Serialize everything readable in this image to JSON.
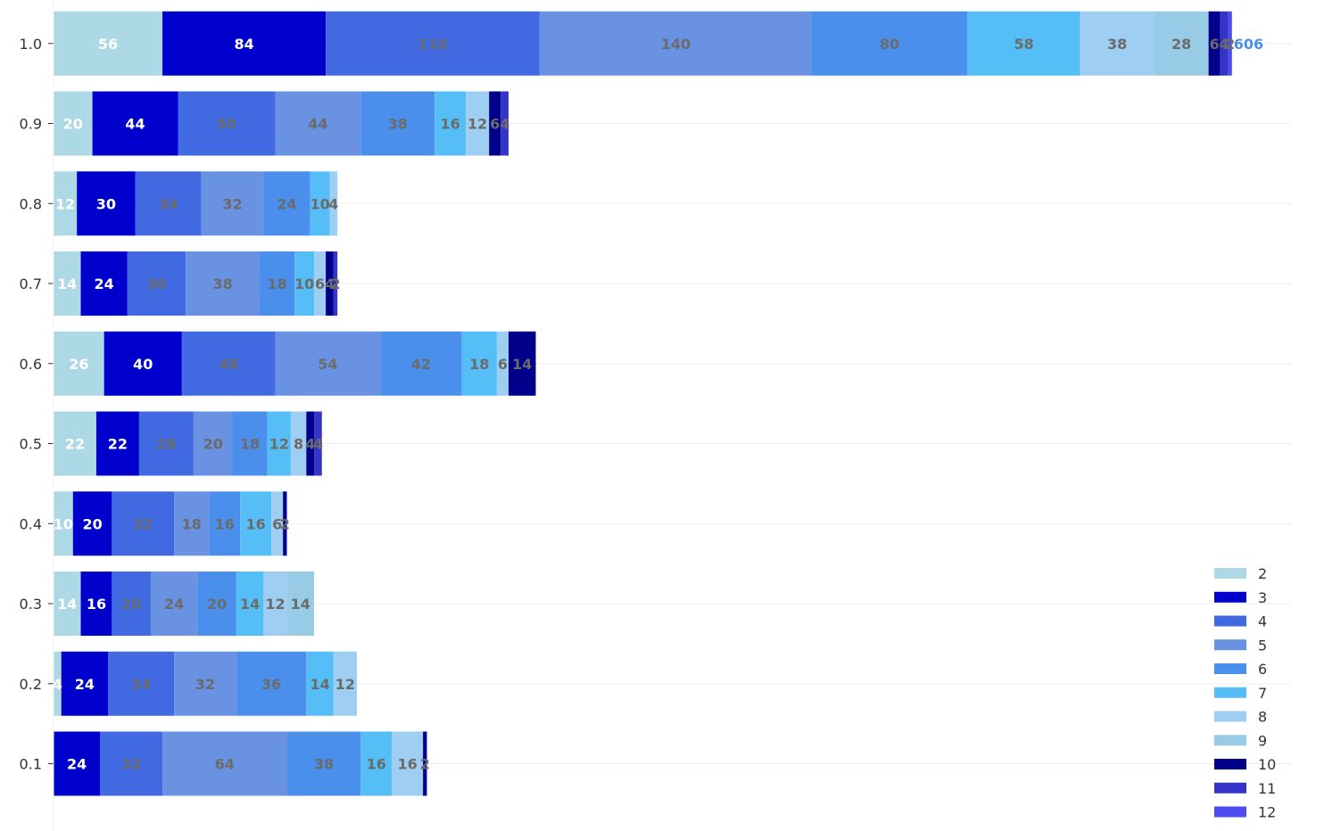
{
  "chart_data": {
    "type": "bar",
    "orientation": "horizontal",
    "stacked": true,
    "categories": [
      "0.1",
      "0.2",
      "0.3",
      "0.4",
      "0.5",
      "0.6",
      "0.7",
      "0.8",
      "0.9",
      "1.0"
    ],
    "series": [
      {
        "name": "2",
        "color": "#add8e6",
        "values": [
          0,
          4,
          14,
          10,
          22,
          26,
          14,
          12,
          20,
          56
        ]
      },
      {
        "name": "3",
        "color": "#0000cd",
        "values": [
          24,
          24,
          16,
          20,
          22,
          40,
          24,
          30,
          44,
          84
        ]
      },
      {
        "name": "4",
        "color": "#4169e1",
        "values": [
          32,
          34,
          20,
          32,
          28,
          48,
          30,
          34,
          50,
          110
        ]
      },
      {
        "name": "5",
        "color": "#6a92e3",
        "values": [
          64,
          32,
          24,
          18,
          20,
          54,
          38,
          32,
          44,
          140
        ]
      },
      {
        "name": "6",
        "color": "#4a8fec",
        "values": [
          38,
          36,
          20,
          16,
          18,
          42,
          18,
          24,
          38,
          80
        ]
      },
      {
        "name": "7",
        "color": "#56bef7",
        "values": [
          16,
          14,
          14,
          16,
          12,
          18,
          10,
          10,
          16,
          58
        ]
      },
      {
        "name": "8",
        "color": "#9ecff2",
        "values": [
          16,
          12,
          12,
          6,
          8,
          6,
          6,
          4,
          12,
          38
        ]
      },
      {
        "name": "9",
        "color": "#98cce6",
        "values": [
          0,
          0,
          14,
          0,
          0,
          0,
          0,
          0,
          0,
          28
        ]
      },
      {
        "name": "10",
        "color": "#00008b",
        "values": [
          2,
          0,
          0,
          2,
          4,
          14,
          4,
          0,
          6,
          6
        ]
      },
      {
        "name": "11",
        "color": "#3434c8",
        "values": [
          0,
          0,
          0,
          0,
          4,
          0,
          2,
          0,
          4,
          4
        ]
      },
      {
        "name": "12",
        "color": "#4b4bf0",
        "values": [
          0,
          0,
          0,
          0,
          0,
          0,
          0,
          0,
          0,
          2
        ]
      }
    ],
    "totals": [
      null,
      null,
      null,
      null,
      null,
      null,
      null,
      null,
      null,
      "606"
    ],
    "xlim": [
      0,
      635
    ],
    "grid": true,
    "legend_position": "bottom-right",
    "title": "",
    "xlabel": "",
    "ylabel": ""
  }
}
